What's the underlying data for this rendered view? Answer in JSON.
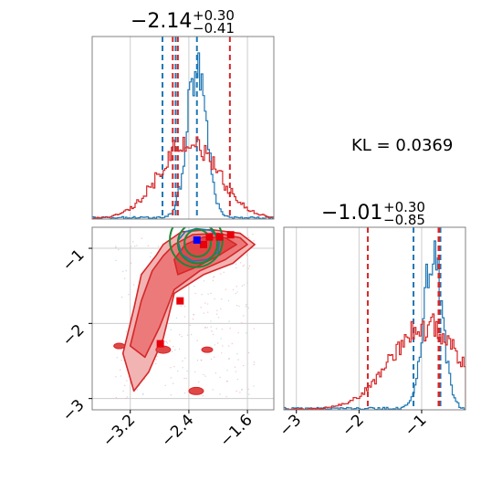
{
  "chart_data": [
    {
      "type": "histogram",
      "panel": "marginal-x",
      "title_main": "−2.14",
      "title_sup": "+0.30",
      "title_sub": "−0.41",
      "xlim": [
        -3.72,
        -1.24
      ],
      "grid": true,
      "series": [
        {
          "name": "",
          "color": "#1f77b4",
          "mean": -2.29,
          "sd": 0.13,
          "lines": [
            -2.58,
            -2.29,
            -2.76
          ]
        },
        {
          "name": "",
          "color": "#d62728",
          "mean": -2.4,
          "sd": 0.4,
          "lines": [
            -2.55,
            -1.84,
            -2.62
          ]
        }
      ]
    },
    {
      "type": "histogram",
      "panel": "marginal-y",
      "title_main": "−1.01",
      "title_sup": "+0.30",
      "title_sub": "−0.85",
      "xlim": [
        -3.2,
        -0.3
      ],
      "xticks": [
        -3,
        -2,
        -1
      ],
      "xtick_labels": [
        "−3",
        "−2",
        "−1"
      ],
      "grid": true,
      "series": [
        {
          "name": "",
          "color": "#1f77b4",
          "mean": -0.82,
          "sd": 0.15,
          "lines": [
            -1.13,
            -0.73,
            -0.7
          ]
        },
        {
          "name": "",
          "color": "#d62728",
          "mean": -0.95,
          "sd": 0.55,
          "lines": [
            -1.86,
            -0.72,
            -0.73
          ]
        }
      ]
    },
    {
      "type": "scatter",
      "panel": "joint",
      "xlim": [
        -3.72,
        -1.24
      ],
      "ylim": [
        -3.15,
        -0.72
      ],
      "xticks": [
        -3.2,
        -2.4,
        -1.6
      ],
      "xtick_labels": [
        "−3.2",
        "−2.4",
        "−1.6"
      ],
      "yticks": [
        -1,
        -2,
        -3
      ],
      "ytick_labels": [
        "−1",
        "−2",
        "−3"
      ],
      "grid": true,
      "red_contours": [
        {
          "level": 1,
          "points": [
            [
              -2.75,
              -0.95
            ],
            [
              -2.5,
              -0.78
            ],
            [
              -2.1,
              -0.75
            ],
            [
              -1.7,
              -0.8
            ],
            [
              -1.5,
              -0.95
            ],
            [
              -1.8,
              -1.2
            ],
            [
              -2.2,
              -1.35
            ],
            [
              -2.6,
              -1.6
            ],
            [
              -2.75,
              -2.2
            ],
            [
              -2.95,
              -2.65
            ],
            [
              -3.15,
              -2.9
            ],
            [
              -3.3,
              -2.4
            ],
            [
              -3.15,
              -1.8
            ],
            [
              -3.05,
              -1.35
            ],
            [
              -2.85,
              -1.1
            ]
          ]
        },
        {
          "level": 2,
          "points": [
            [
              -2.6,
              -0.95
            ],
            [
              -2.35,
              -0.82
            ],
            [
              -2.0,
              -0.8
            ],
            [
              -1.7,
              -0.86
            ],
            [
              -1.6,
              -0.95
            ],
            [
              -1.9,
              -1.15
            ],
            [
              -2.25,
              -1.3
            ],
            [
              -2.6,
              -1.55
            ],
            [
              -2.8,
              -2.05
            ],
            [
              -3.0,
              -2.45
            ],
            [
              -3.2,
              -2.3
            ],
            [
              -3.05,
              -1.7
            ],
            [
              -2.9,
              -1.3
            ],
            [
              -2.75,
              -1.1
            ]
          ]
        },
        {
          "level": 3,
          "points": [
            [
              -2.45,
              -0.95
            ],
            [
              -2.2,
              -0.85
            ],
            [
              -1.9,
              -0.86
            ],
            [
              -1.75,
              -0.95
            ],
            [
              -2.0,
              -1.1
            ],
            [
              -2.3,
              -1.25
            ],
            [
              -2.55,
              -1.35
            ],
            [
              -2.6,
              -1.15
            ]
          ]
        }
      ],
      "blue_contours": [
        {
          "level": 1,
          "points": [
            [
              -2.55,
              -0.9
            ],
            [
              -2.45,
              -0.78
            ],
            [
              -2.3,
              -0.74
            ],
            [
              -2.1,
              -0.76
            ],
            [
              -1.98,
              -0.88
            ],
            [
              -2.0,
              -1.05
            ],
            [
              -2.15,
              -1.15
            ],
            [
              -2.35,
              -1.17
            ],
            [
              -2.5,
              -1.08
            ]
          ]
        }
      ],
      "green_circles": [
        {
          "cx": -2.28,
          "cy": -0.93,
          "r": 0.18
        },
        {
          "cx": -2.28,
          "cy": -0.93,
          "r": 0.27
        },
        {
          "cx": -2.3,
          "cy": -0.89,
          "r": 0.36
        }
      ],
      "red_markers": [
        [
          -2.12,
          -0.85
        ],
        [
          -1.83,
          -0.82
        ],
        [
          -2.52,
          -1.7
        ],
        [
          -2.79,
          -2.27
        ],
        [
          -2.2,
          -0.95
        ],
        [
          -1.98,
          -0.85
        ]
      ],
      "blue_markers": [
        [
          -2.29,
          -0.89
        ]
      ]
    }
  ],
  "annotation": {
    "kl_text": "KL = 0.0369"
  }
}
